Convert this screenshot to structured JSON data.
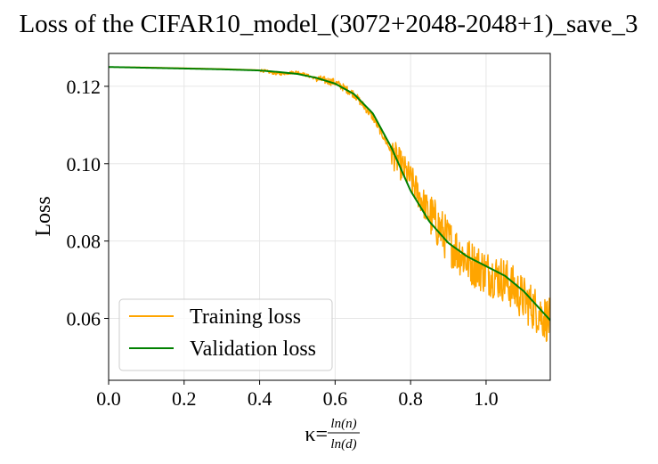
{
  "chart_data": {
    "type": "line",
    "title": "Loss of the CIFAR10_model_(3072+2048-2048+1)_save_3",
    "xlabel": {
      "prefix": "κ=",
      "numerator": "ln(n)",
      "denominator": "ln(d)"
    },
    "ylabel": "Loss",
    "xlim": [
      0.0,
      1.17
    ],
    "ylim": [
      0.044,
      0.1285
    ],
    "xticks": [
      0.0,
      0.2,
      0.4,
      0.6,
      0.8,
      1.0
    ],
    "xtick_labels": [
      "0.0",
      "0.2",
      "0.4",
      "0.6",
      "0.8",
      "1.0"
    ],
    "yticks": [
      0.06,
      0.08,
      0.1,
      0.12
    ],
    "ytick_labels": [
      "0.06",
      "0.08",
      "0.10",
      "0.12"
    ],
    "grid": true,
    "legend_position": "lower-left",
    "series": [
      {
        "name": "Training loss",
        "color": "#FFA500",
        "x": [
          0.0,
          0.1,
          0.2,
          0.3,
          0.4,
          0.45,
          0.5,
          0.55,
          0.6,
          0.65,
          0.7,
          0.75,
          0.8,
          0.85,
          0.9,
          0.95,
          1.0,
          1.05,
          1.1,
          1.17
        ],
        "y": [
          0.125,
          0.1249,
          0.1247,
          0.1245,
          0.1242,
          0.1232,
          0.1237,
          0.122,
          0.121,
          0.118,
          0.112,
          0.103,
          0.096,
          0.087,
          0.08,
          0.075,
          0.072,
          0.07,
          0.065,
          0.059
        ]
      },
      {
        "name": "Validation loss",
        "color": "#008000",
        "x": [
          0.0,
          0.1,
          0.2,
          0.3,
          0.4,
          0.45,
          0.5,
          0.55,
          0.6,
          0.65,
          0.7,
          0.75,
          0.8,
          0.85,
          0.9,
          0.95,
          1.0,
          1.05,
          1.1,
          1.17
        ],
        "y": [
          0.125,
          0.1248,
          0.1246,
          0.1244,
          0.1241,
          0.1237,
          0.1232,
          0.1222,
          0.1207,
          0.118,
          0.113,
          0.104,
          0.093,
          0.085,
          0.0795,
          0.076,
          0.0735,
          0.071,
          0.067,
          0.0595
        ]
      }
    ]
  }
}
